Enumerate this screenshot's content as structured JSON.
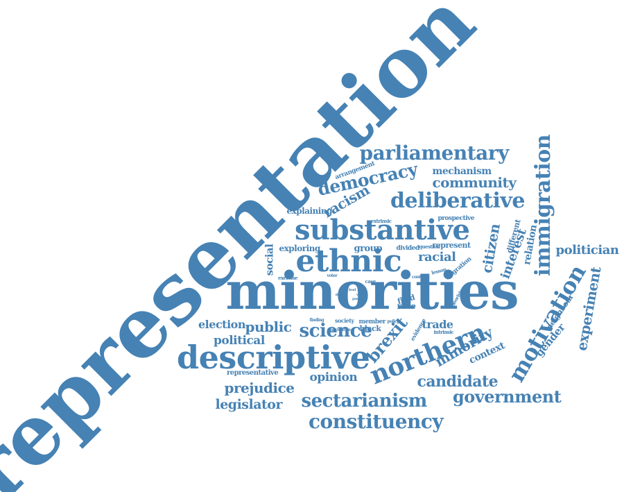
{
  "colors": {
    "word": "#4682b4",
    "background": "#ffffff"
  },
  "words": [
    "representation",
    "minorities",
    "substantive",
    "ethnic",
    "descriptive",
    "parliamentary",
    "deliberative",
    "democracy",
    "community",
    "mechanism",
    "arrangement",
    "racism",
    "explaining",
    "extrinsic",
    "prospective",
    "immigration",
    "different",
    "interest",
    "relation",
    "citizen",
    "politician",
    "represent",
    "racial",
    "group",
    "divided",
    "question",
    "exploring",
    "social",
    "exercise",
    "voter",
    "case",
    "contact",
    "lesson",
    "migration",
    "study",
    "lead",
    "want",
    "pursue",
    "field",
    "race",
    "theorists",
    "motivation",
    "experiment",
    "neighbour",
    "gender",
    "context",
    "election",
    "public",
    "science",
    "trade",
    "finding",
    "society",
    "member",
    "policy",
    "evidence",
    "intrinsic",
    "normative",
    "black",
    "brexit",
    "political",
    "northern",
    "minority",
    "candidate",
    "government",
    "representative",
    "opinion",
    "prejudice",
    "legislator",
    "sectarianism",
    "constituency"
  ]
}
